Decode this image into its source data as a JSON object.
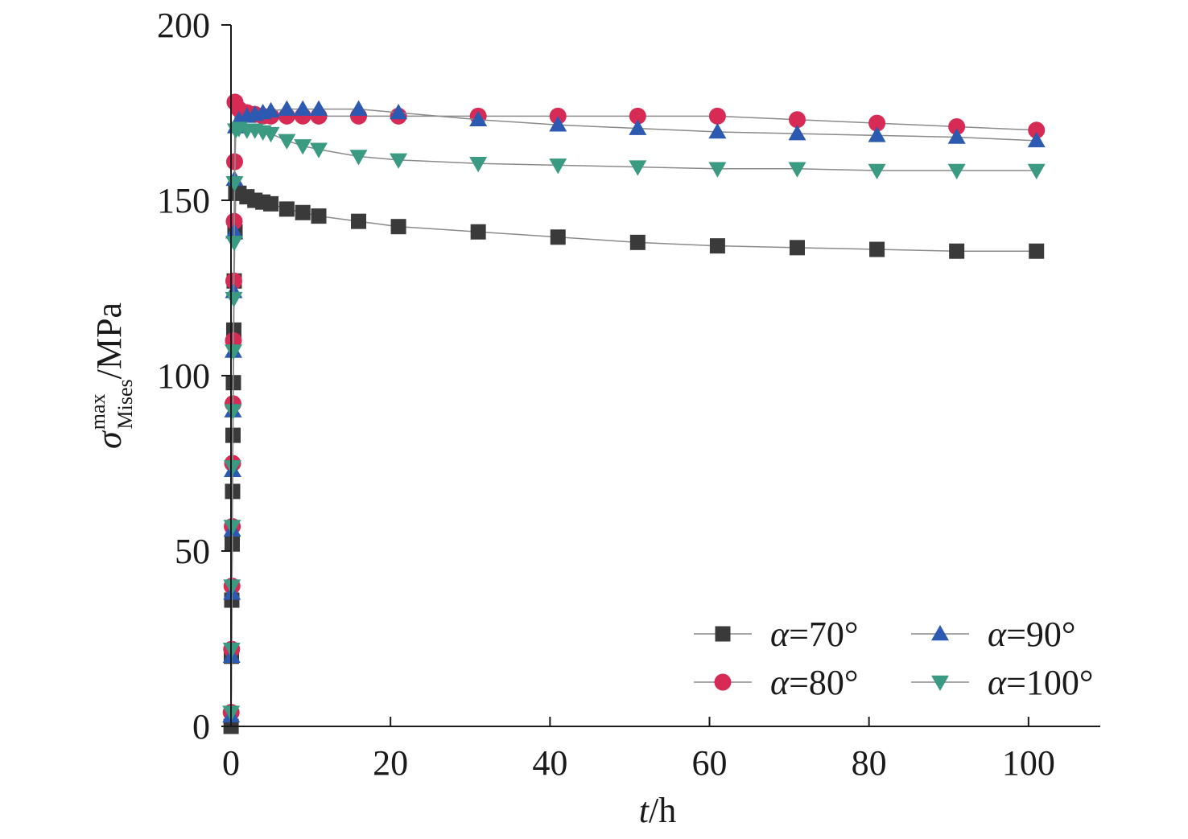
{
  "chart_data": {
    "type": "line",
    "xlabel": {
      "var": "t",
      "unit": "/h"
    },
    "ylabel": {
      "sym": "σ",
      "sup": "max",
      "sub": "Mises",
      "unit": "/MPa"
    },
    "xlim": [
      0,
      109
    ],
    "ylim": [
      0,
      200
    ],
    "xticks": [
      0,
      20,
      40,
      60,
      80,
      100
    ],
    "yticks": [
      0,
      50,
      100,
      150,
      200
    ],
    "grid": false,
    "legend_position": "bottom-right",
    "series": [
      {
        "name": "α=70°",
        "var": "α",
        "value": "=70°",
        "color": "#3a3a3a",
        "marker": "square",
        "points": [
          [
            0.01,
            0
          ],
          [
            0.05,
            20
          ],
          [
            0.1,
            36
          ],
          [
            0.15,
            52
          ],
          [
            0.2,
            67
          ],
          [
            0.25,
            83
          ],
          [
            0.3,
            98
          ],
          [
            0.35,
            113
          ],
          [
            0.4,
            127
          ],
          [
            0.5,
            141
          ],
          [
            0.6,
            152
          ],
          [
            1,
            152
          ],
          [
            2,
            151
          ],
          [
            3,
            150
          ],
          [
            4,
            149.5
          ],
          [
            5,
            149
          ],
          [
            7,
            147.5
          ],
          [
            9,
            146.5
          ],
          [
            11,
            145.5
          ],
          [
            16,
            144
          ],
          [
            21,
            142.5
          ],
          [
            31,
            141
          ],
          [
            41,
            139.5
          ],
          [
            51,
            138
          ],
          [
            61,
            137
          ],
          [
            71,
            136.5
          ],
          [
            81,
            136
          ],
          [
            91,
            135.5
          ],
          [
            101,
            135.5
          ]
        ]
      },
      {
        "name": "α=80°",
        "var": "α",
        "value": "=80°",
        "color": "#d72b55",
        "marker": "circle",
        "points": [
          [
            0.02,
            4
          ],
          [
            0.08,
            22
          ],
          [
            0.12,
            40
          ],
          [
            0.16,
            57
          ],
          [
            0.2,
            75
          ],
          [
            0.25,
            92
          ],
          [
            0.3,
            110
          ],
          [
            0.35,
            127
          ],
          [
            0.4,
            144
          ],
          [
            0.45,
            161
          ],
          [
            0.5,
            178
          ],
          [
            1,
            176
          ],
          [
            2,
            175
          ],
          [
            3,
            174.5
          ],
          [
            4,
            174
          ],
          [
            5,
            174
          ],
          [
            7,
            174
          ],
          [
            9,
            174
          ],
          [
            11,
            174
          ],
          [
            16,
            174
          ],
          [
            21,
            174
          ],
          [
            31,
            174
          ],
          [
            41,
            174
          ],
          [
            51,
            174
          ],
          [
            61,
            174
          ],
          [
            71,
            173
          ],
          [
            81,
            172
          ],
          [
            91,
            171
          ],
          [
            101,
            170
          ]
        ]
      },
      {
        "name": "α=90°",
        "var": "α",
        "value": "=90°",
        "color": "#2c5ab0",
        "marker": "triangle-up",
        "points": [
          [
            0.02,
            3
          ],
          [
            0.08,
            20
          ],
          [
            0.12,
            38
          ],
          [
            0.16,
            56
          ],
          [
            0.2,
            73
          ],
          [
            0.25,
            90
          ],
          [
            0.3,
            107
          ],
          [
            0.35,
            124
          ],
          [
            0.4,
            141
          ],
          [
            0.45,
            156
          ],
          [
            0.6,
            171
          ],
          [
            1,
            173
          ],
          [
            2,
            174
          ],
          [
            3,
            174.5
          ],
          [
            4,
            175
          ],
          [
            5,
            175.5
          ],
          [
            7,
            176
          ],
          [
            9,
            176
          ],
          [
            11,
            176
          ],
          [
            16,
            176
          ],
          [
            21,
            175
          ],
          [
            31,
            173
          ],
          [
            41,
            171.5
          ],
          [
            51,
            170.5
          ],
          [
            61,
            169.5
          ],
          [
            71,
            169
          ],
          [
            81,
            168.5
          ],
          [
            91,
            168
          ],
          [
            101,
            167
          ]
        ]
      },
      {
        "name": "α=100°",
        "var": "α",
        "value": "=100°",
        "color": "#3b9a82",
        "marker": "triangle-down",
        "points": [
          [
            0.02,
            4
          ],
          [
            0.08,
            22
          ],
          [
            0.12,
            40
          ],
          [
            0.16,
            57
          ],
          [
            0.2,
            74
          ],
          [
            0.25,
            90
          ],
          [
            0.3,
            107
          ],
          [
            0.35,
            122
          ],
          [
            0.4,
            138
          ],
          [
            0.45,
            155
          ],
          [
            0.6,
            170
          ],
          [
            1,
            170.5
          ],
          [
            2,
            170
          ],
          [
            3,
            170
          ],
          [
            4,
            169.5
          ],
          [
            5,
            169
          ],
          [
            7,
            167
          ],
          [
            9,
            165.5
          ],
          [
            11,
            164.5
          ],
          [
            16,
            162.5
          ],
          [
            21,
            161.5
          ],
          [
            31,
            160.5
          ],
          [
            41,
            160
          ],
          [
            51,
            159.5
          ],
          [
            61,
            159
          ],
          [
            71,
            159
          ],
          [
            81,
            158.5
          ],
          [
            91,
            158.5
          ],
          [
            101,
            158.5
          ]
        ]
      }
    ]
  }
}
